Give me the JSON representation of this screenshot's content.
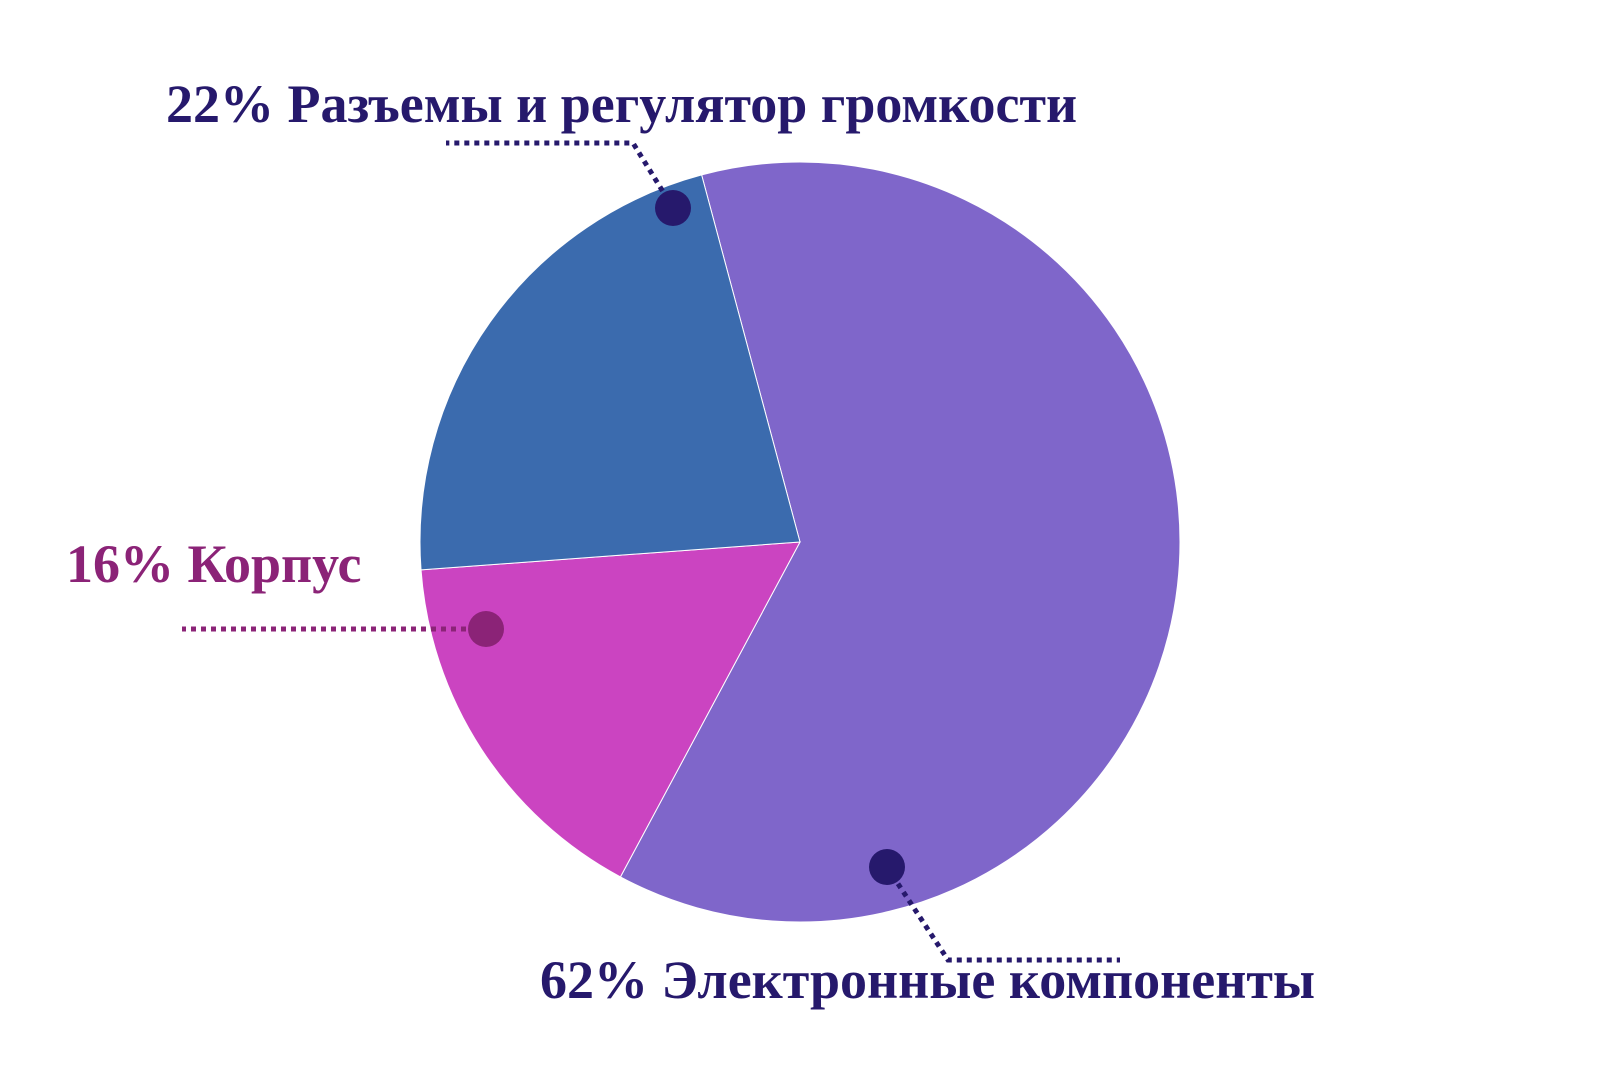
{
  "chart_data": {
    "type": "pie",
    "title": "",
    "slices": [
      {
        "name": "Электронные компоненты",
        "value": 62,
        "label": "62% Электронные компоненты",
        "color": "#7f66ca",
        "label_color": "#26196c",
        "marker_color": "#26196c"
      },
      {
        "name": "Корпус",
        "value": 16,
        "label": "16% Корпус",
        "color": "#cb44c1",
        "label_color": "#8b2377",
        "marker_color": "#8b2377"
      },
      {
        "name": "Разъемы и регулятор громкости",
        "value": 22,
        "label": "22% Разъемы и регулятор громкости",
        "color": "#3b6bae",
        "label_color": "#26196c",
        "marker_color": "#26196c"
      }
    ],
    "legend": "none",
    "label_style": "callout with dotted leader lines"
  }
}
